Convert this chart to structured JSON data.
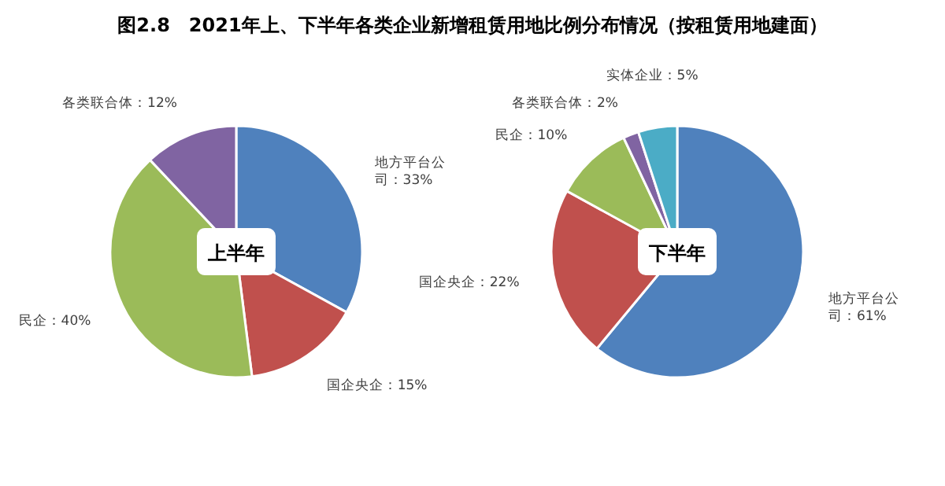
{
  "chart_data": [
    {
      "type": "pie",
      "title": "图2.8　2021年上、下半年各类企业新增租赁用地比例分布情况（按租赁用地建面）",
      "annotations": [
        "上半年"
      ],
      "categories": [
        "地方平台公司",
        "国企央企",
        "民企",
        "各类联合体"
      ],
      "values": [
        33,
        15,
        40,
        12
      ],
      "value_labels": [
        "33%",
        "15%",
        "40%",
        "12%"
      ],
      "colors": [
        "#4f81bd",
        "#c0504d",
        "#9bbb59",
        "#8064a2"
      ]
    },
    {
      "type": "pie",
      "annotations": [
        "下半年"
      ],
      "categories": [
        "地方平台公司",
        "国企央企",
        "民企",
        "各类联合体",
        "实体企业"
      ],
      "values": [
        61,
        22,
        10,
        2,
        5
      ],
      "value_labels": [
        "61%",
        "22%",
        "10%",
        "2%",
        "5%"
      ],
      "colors": [
        "#4f81bd",
        "#c0504d",
        "#9bbb59",
        "#8064a2",
        "#4bacc6"
      ]
    }
  ]
}
